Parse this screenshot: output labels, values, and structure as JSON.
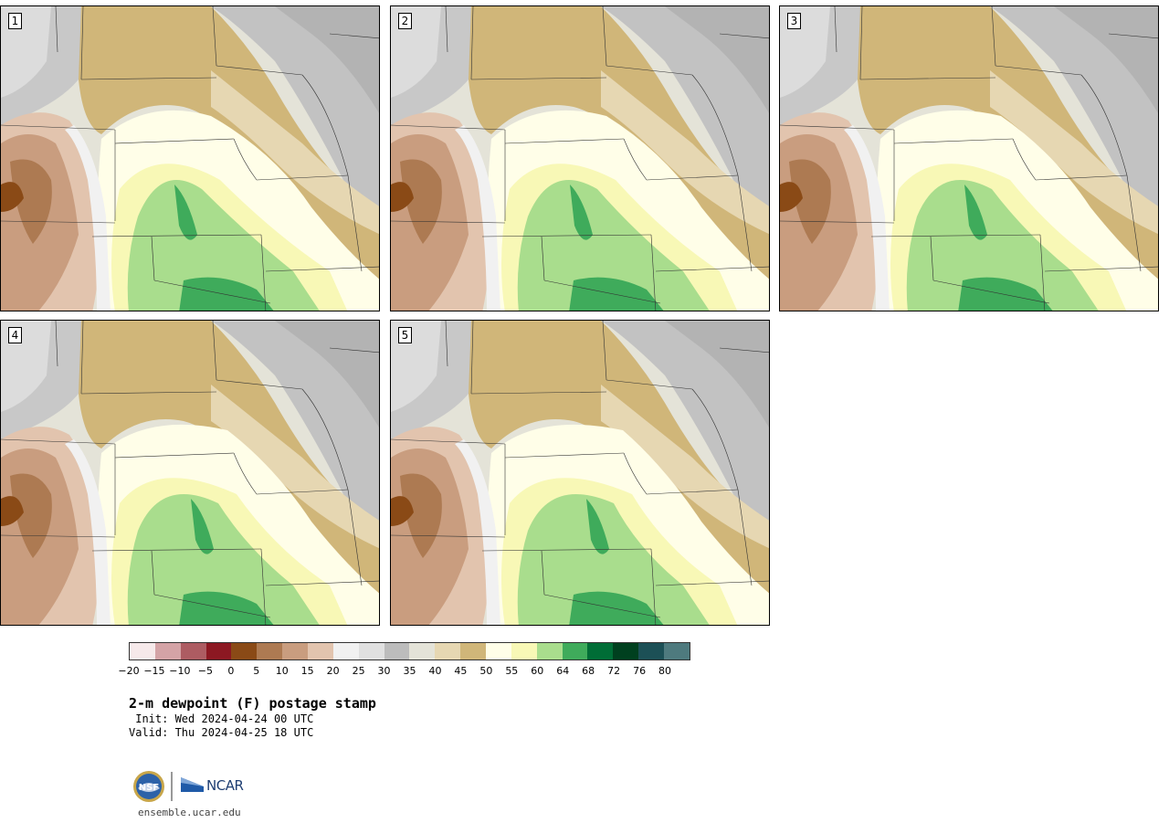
{
  "panels": [
    {
      "label": "1"
    },
    {
      "label": "2"
    },
    {
      "label": "3"
    },
    {
      "label": "4"
    },
    {
      "label": "5"
    }
  ],
  "colorbar": {
    "colors": [
      "#f6e9ea",
      "#d4a3a6",
      "#ad5c62",
      "#8c1822",
      "#8a4a16",
      "#ad7a52",
      "#c99d7f",
      "#e2c4ae",
      "#f1f1f1",
      "#e0e0e0",
      "#bcbcbc",
      "#e4e3d8",
      "#e6d7b2",
      "#d0b679",
      "#fffee8",
      "#f8f8b6",
      "#a9dd8d",
      "#3fab5b",
      "#006d36",
      "#00401f",
      "#1c5056",
      "#4e7a7e"
    ],
    "tick_labels": [
      "-20",
      "-15",
      "-10",
      "-5",
      "0",
      "5",
      "10",
      "15",
      "20",
      "25",
      "30",
      "35",
      "40",
      "45",
      "50",
      "55",
      "60",
      "64",
      "68",
      "72",
      "76",
      "80"
    ]
  },
  "title": "2-m dewpoint (F) postage stamp",
  "init": " Init: Wed 2024-04-24 00 UTC",
  "valid": "Valid: Thu 2024-04-25 18 UTC",
  "logo": {
    "nsf": "NSF",
    "ncar": "NCAR"
  },
  "url": "ensemble.ucar.edu"
}
